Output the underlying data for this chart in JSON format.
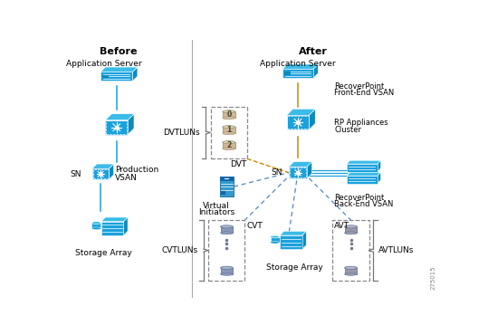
{
  "bg_color": "#ffffff",
  "title_before": "Before",
  "title_after": "After",
  "cisco_blue": "#1BA1DC",
  "cisco_blue2": "#3BBCE8",
  "cisco_dark": "#0E8BBE",
  "tan_color": "#D4B896",
  "tan_top": "#E8D5B0",
  "lav_color": "#8899BB",
  "lav_top": "#AABBCC",
  "orange_line": "#CC8800",
  "blue_line": "#4477AA",
  "dashed_blue": "#5588BB",
  "gray_div": "#AAAAAA",
  "figure_number": "275015"
}
